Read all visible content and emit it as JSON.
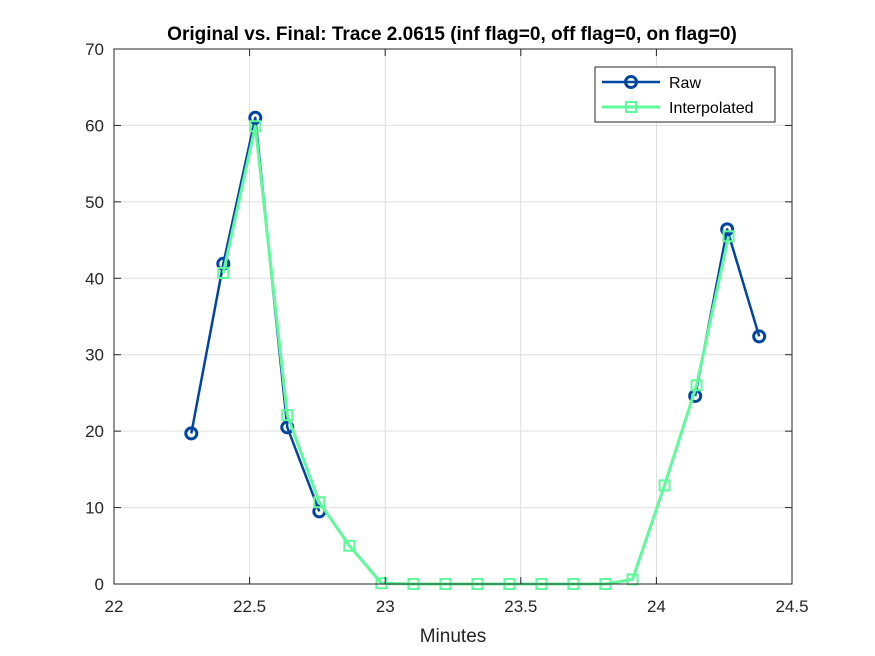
{
  "chart_data": {
    "type": "line",
    "title": "Original vs. Final: Trace 2.0615 (inf flag=0, off flag=0, on flag=0)",
    "xlabel": "Minutes",
    "ylabel": "",
    "xlim": [
      22,
      24.5
    ],
    "ylim": [
      0,
      70
    ],
    "xticks": [
      22,
      22.5,
      23,
      23.5,
      24,
      24.5
    ],
    "xtick_labels": [
      "22",
      "22.5",
      "23",
      "23.5",
      "24",
      "24.5"
    ],
    "yticks": [
      0,
      10,
      20,
      30,
      40,
      50,
      60,
      70
    ],
    "ytick_labels": [
      "0",
      "10",
      "20",
      "30",
      "40",
      "50",
      "60",
      "70"
    ],
    "grid": true,
    "legend_position": "top-right",
    "series": [
      {
        "name": "Raw",
        "color": "#0046a0",
        "marker": "circle",
        "x": [
          22.285,
          22.403,
          22.521,
          22.639,
          22.757
        ],
        "y": [
          19.7,
          41.9,
          61.0,
          20.5,
          9.5
        ],
        "segments": [
          [
            0,
            4
          ]
        ],
        "extra_x": [
          24.143,
          24.261,
          24.379
        ],
        "extra_y": [
          24.6,
          46.4,
          32.4
        ]
      },
      {
        "name": "Interpolated",
        "color": "#5ffa9a",
        "marker": "square",
        "x": [
          22.403,
          22.521,
          22.639,
          22.757,
          22.868,
          22.986,
          23.104,
          23.222,
          23.34,
          23.458,
          23.576,
          23.694,
          23.812,
          23.912,
          24.03,
          24.148,
          24.266
        ],
        "y": [
          40.7,
          59.9,
          22.1,
          10.7,
          5.0,
          0.1,
          0.0,
          0.0,
          0.0,
          0.0,
          0.0,
          0.0,
          0.0,
          0.6,
          12.9,
          26.0,
          45.5
        ]
      }
    ]
  }
}
